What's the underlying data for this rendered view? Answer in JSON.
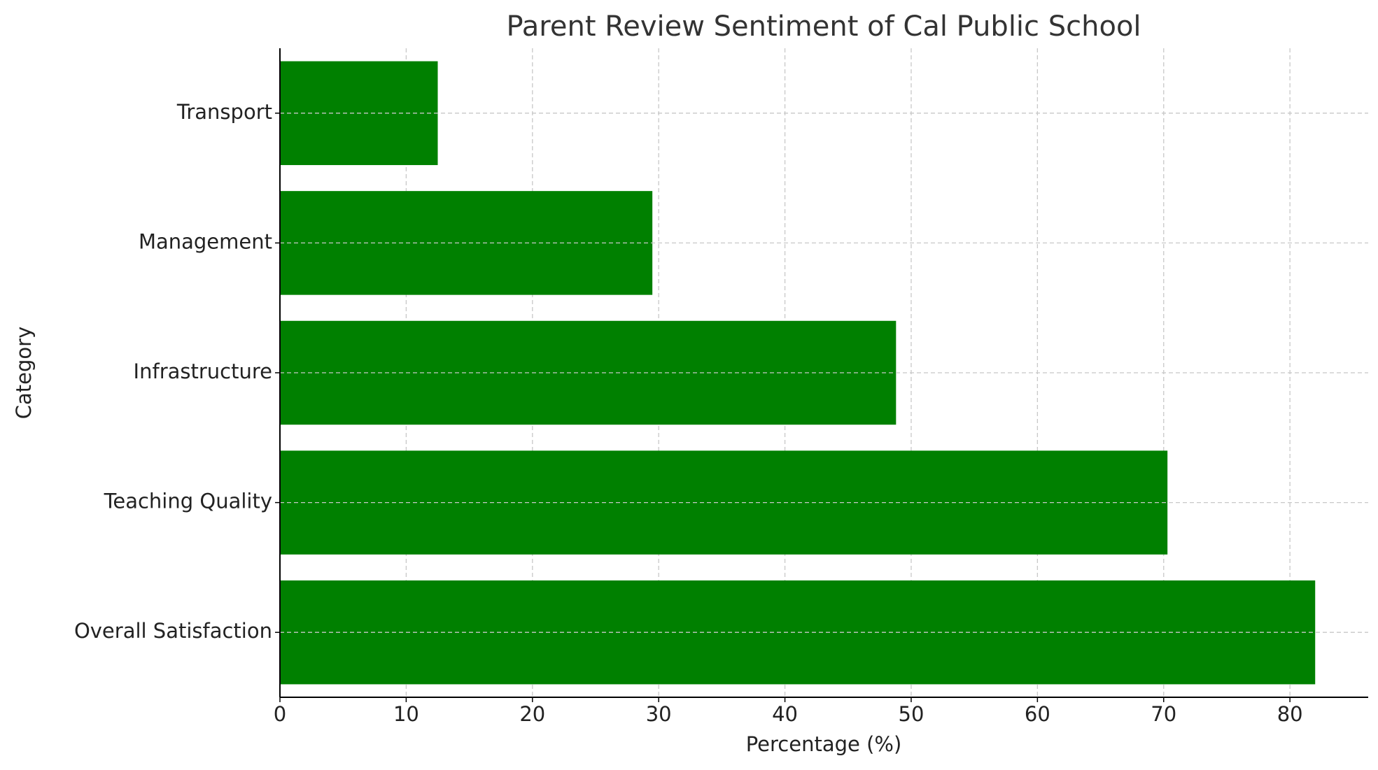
{
  "chart_data": {
    "type": "barh",
    "title": "Parent Review Sentiment of Cal Public School",
    "x_label": "Percentage (%)",
    "y_label": "Category",
    "categories": [
      "Overall Satisfaction",
      "Teaching Quality",
      "Infrastructure",
      "Management",
      "Transport"
    ],
    "values": [
      82,
      70.3,
      48.8,
      29.5,
      12.5
    ],
    "color": "#008000",
    "xlim": [
      0,
      86.2
    ],
    "xticks": [
      0,
      10,
      20,
      30,
      40,
      50,
      60,
      70,
      80
    ],
    "grid": true
  }
}
